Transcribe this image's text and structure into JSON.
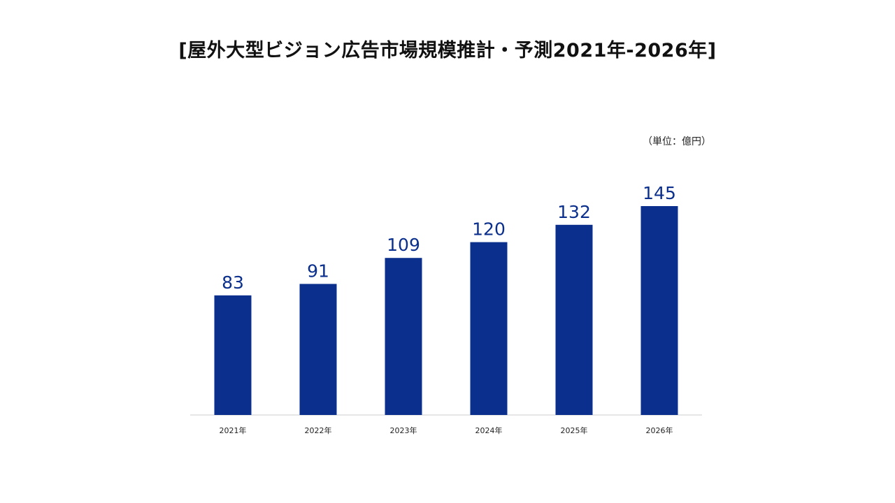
{
  "chart_data": {
    "type": "bar",
    "title": "[屋外大型ビジョン広告市場規模推計・予測2021年-2026年]",
    "unit_label": "（単位：億円）",
    "categories": [
      "2021年",
      "2022年",
      "2023年",
      "2024年",
      "2025年",
      "2026年"
    ],
    "values": [
      83,
      91,
      109,
      120,
      132,
      145
    ],
    "xlabel": "",
    "ylabel": "",
    "ylim": [
      0,
      145
    ],
    "grid": false,
    "legend": "none",
    "bar_color": "#0b2f8c",
    "label_color": "#0b2f8c",
    "baseline_color": "#cccccc"
  }
}
